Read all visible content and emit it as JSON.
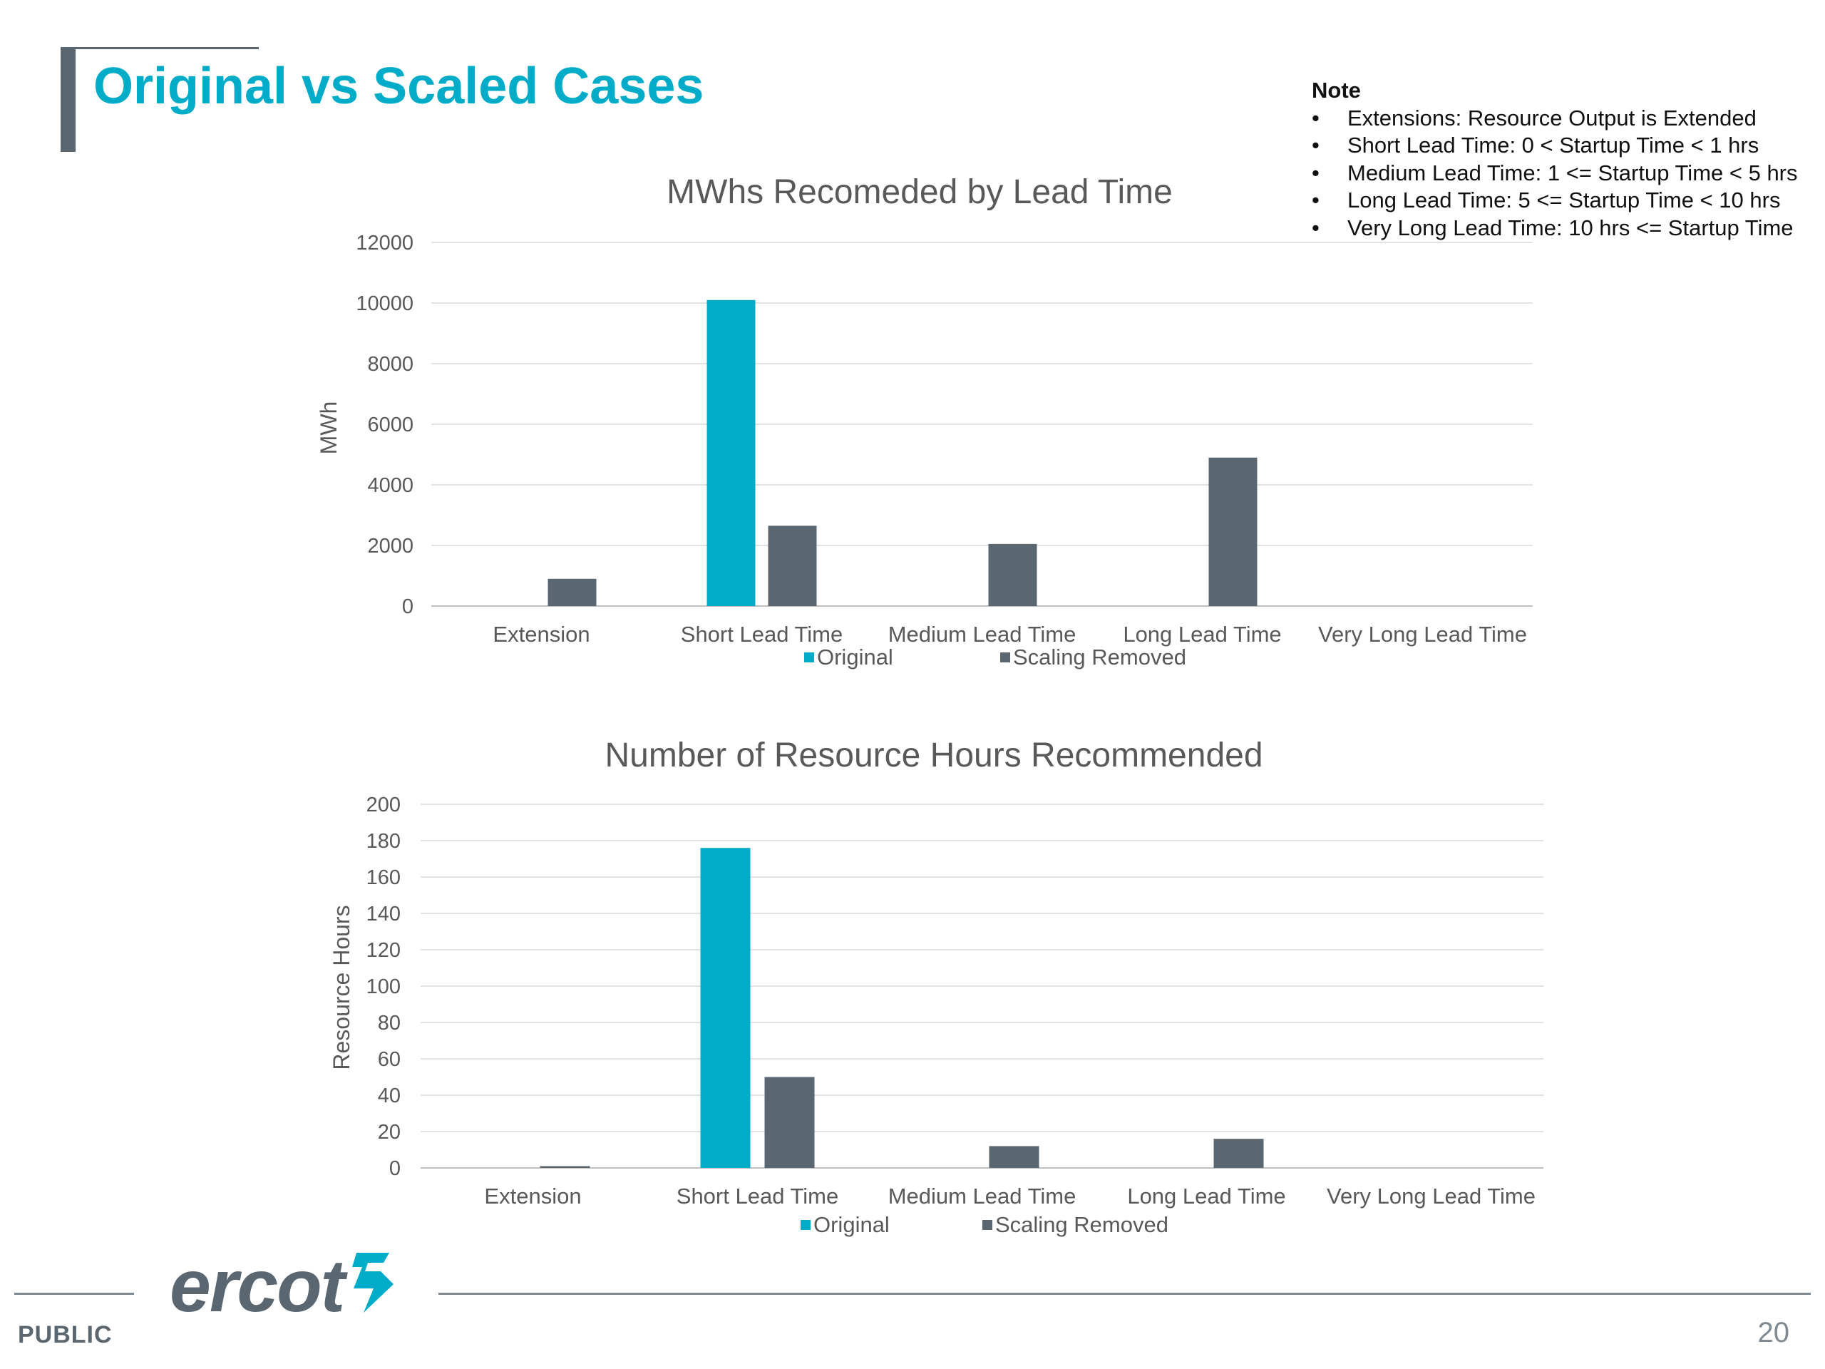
{
  "header": {
    "title": "Original vs Scaled Cases"
  },
  "note": {
    "heading": "Note",
    "items": [
      "Extensions: Resource Output is Extended",
      "Short Lead Time: 0 < Startup Time < 1 hrs",
      "Medium Lead Time: 1 <= Startup Time < 5 hrs",
      "Long Lead Time: 5 <= Startup Time < 10 hrs",
      "Very Long Lead Time: 10 hrs <= Startup Time"
    ]
  },
  "colors": {
    "original": "#00acc8",
    "scaling_removed": "#5b6770",
    "accent": "#00acc8"
  },
  "chart_data": [
    {
      "type": "bar",
      "title": "MWhs Recomeded by Lead Time",
      "ylabel": "MWh",
      "xlabel": "",
      "categories": [
        "Extension",
        "Short Lead Time",
        "Medium Lead Time",
        "Long Lead Time",
        "Very Long Lead Time"
      ],
      "series": [
        {
          "name": "Original",
          "values": [
            0,
            10100,
            0,
            0,
            0
          ]
        },
        {
          "name": "Scaling Removed",
          "values": [
            900,
            2650,
            2050,
            4900,
            0
          ]
        }
      ],
      "ylim": [
        0,
        12000
      ],
      "yticks": [
        0,
        2000,
        4000,
        6000,
        8000,
        10000,
        12000
      ],
      "grid": true,
      "legend": "bottom"
    },
    {
      "type": "bar",
      "title": "Number of Resource Hours Recommended",
      "ylabel": "Resource Hours",
      "xlabel": "",
      "categories": [
        "Extension",
        "Short Lead Time",
        "Medium Lead Time",
        "Long Lead Time",
        "Very Long Lead Time"
      ],
      "series": [
        {
          "name": "Original",
          "values": [
            0,
            176,
            0,
            0,
            0
          ]
        },
        {
          "name": "Scaling Removed",
          "values": [
            1,
            50,
            12,
            16,
            0
          ]
        }
      ],
      "ylim": [
        0,
        200
      ],
      "yticks": [
        0,
        20,
        40,
        60,
        80,
        100,
        120,
        140,
        160,
        180,
        200
      ],
      "grid": true,
      "legend": "bottom"
    }
  ],
  "footer": {
    "classification": "PUBLIC",
    "page_number": "20",
    "logo_text": "ercot"
  }
}
